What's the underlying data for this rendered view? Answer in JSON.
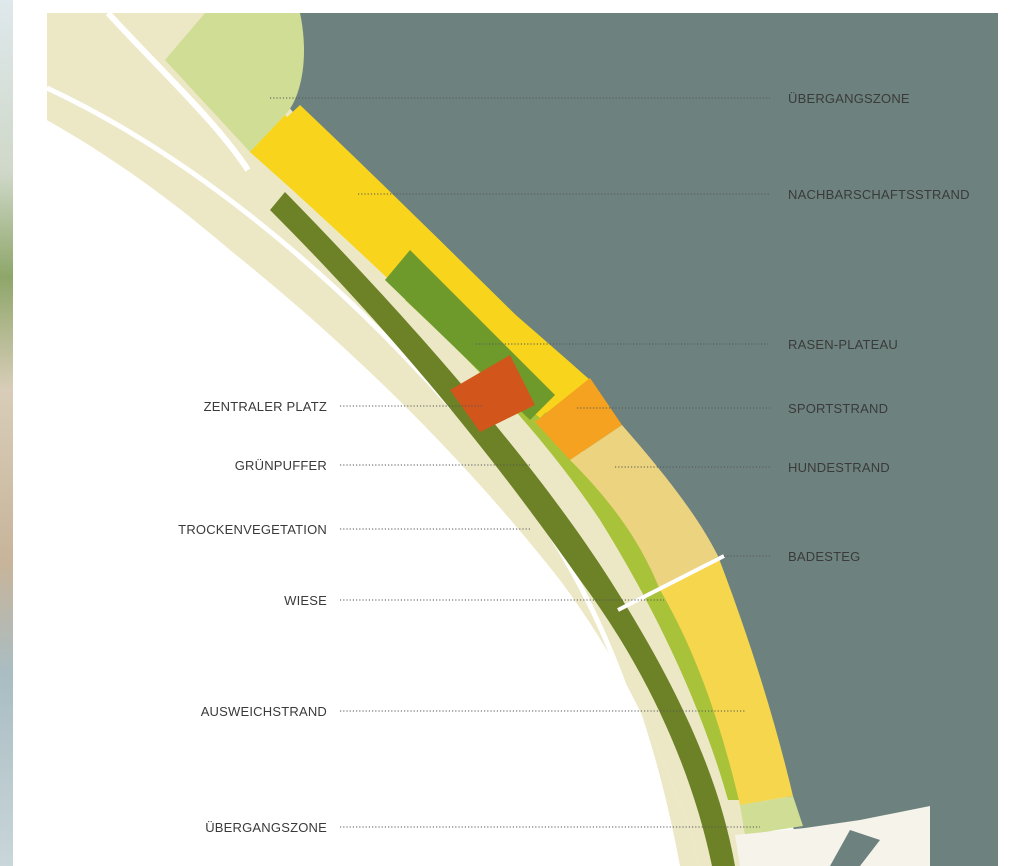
{
  "colors": {
    "water": "#6d827e",
    "pale_band": "#ece8c6",
    "transition_zone": "#cfdd95",
    "neighbourhood_beach": "#f8d51c",
    "lawn_plateau": "#6e9a2c",
    "central_square": "#d2551b",
    "sports_beach": "#f4a21f",
    "dog_beach": "#ecd37f",
    "alternative_beach": "#f5d64c",
    "dry_vegetation": "#6d8226",
    "meadow": "#a8c23a"
  },
  "labels_right": [
    {
      "text": "ÜBERGANGSZONE"
    },
    {
      "text": "NACHBARSCHAFTSSTRAND"
    },
    {
      "text": "RASEN-PLATEAU"
    },
    {
      "text": "SPORTSTRAND"
    },
    {
      "text": "HUNDESTRAND"
    },
    {
      "text": "BADESTEG"
    }
  ],
  "labels_left": [
    {
      "text": "ZENTRALER PLATZ"
    },
    {
      "text": "GRÜNPUFFER"
    },
    {
      "text": "TROCKENVEGETATION"
    },
    {
      "text": "WIESE"
    },
    {
      "text": "AUSWEICHSTRAND"
    },
    {
      "text": "ÜBERGANGSZONE"
    }
  ]
}
